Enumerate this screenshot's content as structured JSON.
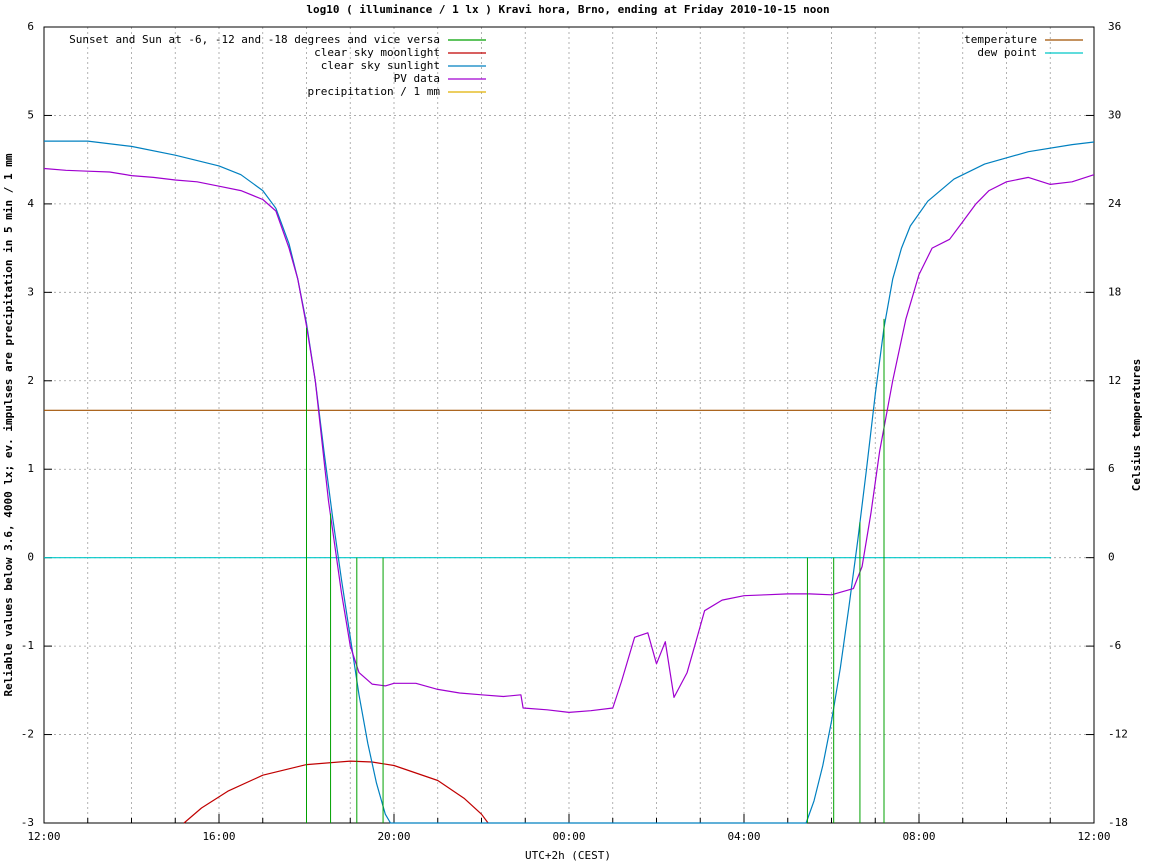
{
  "chart_data": {
    "type": "line",
    "title": "log10 ( illuminance / 1 lx ) Kravi hora, Brno, ending at Friday 2010-10-15 noon",
    "xlabel": "UTC+2h (CEST)",
    "ylabel": "Reliable values below 3.6, 4000 lx; ev. impulses are precipitation in 5 min / 1 mm",
    "y2label": "Celsius temperatures",
    "x_unit": "hours since 12:00 local time",
    "xlim": [
      0,
      24
    ],
    "ylim": [
      -3,
      6
    ],
    "y2lim": [
      -18,
      36
    ],
    "x_ticks": [
      {
        "x": 0,
        "label": "12:00"
      },
      {
        "x": 4,
        "label": "16:00"
      },
      {
        "x": 8,
        "label": "20:00"
      },
      {
        "x": 12,
        "label": "00:00"
      },
      {
        "x": 16,
        "label": "04:00"
      },
      {
        "x": 20,
        "label": "08:00"
      },
      {
        "x": 24,
        "label": "12:00"
      }
    ],
    "y_ticks": [
      -3,
      -2,
      -1,
      0,
      1,
      2,
      3,
      4,
      5,
      6
    ],
    "y2_ticks": [
      -18,
      -12,
      -6,
      0,
      6,
      12,
      18,
      24,
      30,
      36
    ],
    "grid": true,
    "legend_left": {
      "placement": "top-left",
      "entries": [
        {
          "label": "Sunset and Sun at -6, -12 and -18 degrees and vice versa",
          "color": "#00a000"
        },
        {
          "label": "clear sky moonlight",
          "color": "#c00000"
        },
        {
          "label": "clear sky sunlight",
          "color": "#0080c0"
        },
        {
          "label": "PV data",
          "color": "#a000d0"
        },
        {
          "label": "precipitation / 1 mm",
          "color": "#e0b000"
        }
      ]
    },
    "legend_right": {
      "placement": "top-right",
      "entries": [
        {
          "label": "temperature",
          "color": "#a05000"
        },
        {
          "label": "dew point",
          "color": "#00c8c8"
        }
      ]
    },
    "sun_markers": [
      {
        "x": 6.0,
        "y_top": 2.6
      },
      {
        "x": 6.55,
        "y_top": 0.5
      },
      {
        "x": 7.15,
        "y_top": 0
      },
      {
        "x": 7.75,
        "y_top": 0
      },
      {
        "x": 17.45,
        "y_top": 0
      },
      {
        "x": 18.05,
        "y_top": 0
      },
      {
        "x": 18.65,
        "y_top": 0.4
      },
      {
        "x": 19.2,
        "y_top": 2.7
      }
    ],
    "series": [
      {
        "name": "clear sky sunlight",
        "color": "#0080c0",
        "points": [
          [
            0,
            4.71
          ],
          [
            1,
            4.71
          ],
          [
            2,
            4.65
          ],
          [
            3,
            4.55
          ],
          [
            4,
            4.43
          ],
          [
            4.5,
            4.33
          ],
          [
            5,
            4.15
          ],
          [
            5.3,
            3.95
          ],
          [
            5.6,
            3.55
          ],
          [
            5.8,
            3.15
          ],
          [
            6,
            2.65
          ],
          [
            6.2,
            2.0
          ],
          [
            6.4,
            1.2
          ],
          [
            6.6,
            0.45
          ],
          [
            6.8,
            -0.25
          ],
          [
            7.0,
            -0.9
          ],
          [
            7.2,
            -1.55
          ],
          [
            7.4,
            -2.1
          ],
          [
            7.6,
            -2.55
          ],
          [
            7.8,
            -2.9
          ],
          [
            7.92,
            -3.0
          ],
          [
            17.42,
            -3.0
          ],
          [
            17.6,
            -2.75
          ],
          [
            17.8,
            -2.35
          ],
          [
            18.0,
            -1.85
          ],
          [
            18.2,
            -1.25
          ],
          [
            18.4,
            -0.55
          ],
          [
            18.6,
            0.2
          ],
          [
            18.8,
            1.0
          ],
          [
            19.0,
            1.85
          ],
          [
            19.2,
            2.6
          ],
          [
            19.4,
            3.15
          ],
          [
            19.6,
            3.5
          ],
          [
            19.8,
            3.75
          ],
          [
            20.2,
            4.03
          ],
          [
            20.8,
            4.28
          ],
          [
            21.5,
            4.45
          ],
          [
            22.5,
            4.59
          ],
          [
            23.5,
            4.67
          ],
          [
            24,
            4.7
          ]
        ]
      },
      {
        "name": "clear sky moonlight",
        "color": "#c00000",
        "points": [
          [
            3.2,
            -3.0
          ],
          [
            3.6,
            -2.83
          ],
          [
            4.2,
            -2.64
          ],
          [
            5.0,
            -2.46
          ],
          [
            6.0,
            -2.34
          ],
          [
            7.0,
            -2.3
          ],
          [
            7.5,
            -2.31
          ],
          [
            8.0,
            -2.35
          ],
          [
            9.0,
            -2.52
          ],
          [
            9.6,
            -2.72
          ],
          [
            10.0,
            -2.9
          ],
          [
            10.15,
            -3.0
          ]
        ]
      },
      {
        "name": "PV data",
        "color": "#a000d0",
        "points": [
          [
            0,
            4.4
          ],
          [
            0.5,
            4.38
          ],
          [
            1,
            4.37
          ],
          [
            1.5,
            4.36
          ],
          [
            2,
            4.32
          ],
          [
            2.5,
            4.3
          ],
          [
            3,
            4.27
          ],
          [
            3.5,
            4.25
          ],
          [
            4,
            4.2
          ],
          [
            4.5,
            4.15
          ],
          [
            5,
            4.05
          ],
          [
            5.3,
            3.92
          ],
          [
            5.6,
            3.5
          ],
          [
            5.8,
            3.15
          ],
          [
            6,
            2.62
          ],
          [
            6.2,
            2.0
          ],
          [
            6.5,
            0.65
          ],
          [
            6.8,
            -0.4
          ],
          [
            7.0,
            -1.0
          ],
          [
            7.2,
            -1.3
          ],
          [
            7.5,
            -1.43
          ],
          [
            7.8,
            -1.45
          ],
          [
            8.0,
            -1.42
          ],
          [
            8.5,
            -1.42
          ],
          [
            9,
            -1.49
          ],
          [
            9.5,
            -1.53
          ],
          [
            10,
            -1.55
          ],
          [
            10.5,
            -1.57
          ],
          [
            10.9,
            -1.55
          ],
          [
            10.95,
            -1.7
          ],
          [
            11.5,
            -1.72
          ],
          [
            12,
            -1.75
          ],
          [
            12.5,
            -1.73
          ],
          [
            13.0,
            -1.7
          ],
          [
            13.2,
            -1.4
          ],
          [
            13.5,
            -0.9
          ],
          [
            13.8,
            -0.85
          ],
          [
            14.0,
            -1.2
          ],
          [
            14.2,
            -0.95
          ],
          [
            14.4,
            -1.58
          ],
          [
            14.7,
            -1.3
          ],
          [
            14.9,
            -0.95
          ],
          [
            15.1,
            -0.6
          ],
          [
            15.5,
            -0.48
          ],
          [
            16,
            -0.43
          ],
          [
            16.5,
            -0.42
          ],
          [
            17,
            -0.41
          ],
          [
            17.5,
            -0.41
          ],
          [
            18.0,
            -0.42
          ],
          [
            18.5,
            -0.35
          ],
          [
            18.7,
            -0.1
          ],
          [
            18.9,
            0.5
          ],
          [
            19.1,
            1.2
          ],
          [
            19.4,
            2.0
          ],
          [
            19.7,
            2.7
          ],
          [
            20.0,
            3.2
          ],
          [
            20.3,
            3.5
          ],
          [
            20.7,
            3.6
          ],
          [
            21.0,
            3.8
          ],
          [
            21.3,
            4.0
          ],
          [
            21.6,
            4.15
          ],
          [
            22.0,
            4.25
          ],
          [
            22.5,
            4.3
          ],
          [
            23.0,
            4.22
          ],
          [
            23.5,
            4.25
          ],
          [
            24,
            4.33
          ]
        ]
      },
      {
        "name": "temperature",
        "color": "#a05000",
        "axis": "y2",
        "points": [
          [
            0,
            10
          ],
          [
            23.02,
            10
          ]
        ]
      },
      {
        "name": "dew point",
        "color": "#00c8c8",
        "axis": "y2",
        "points": [
          [
            0,
            0
          ],
          [
            23.02,
            0
          ]
        ]
      }
    ]
  }
}
